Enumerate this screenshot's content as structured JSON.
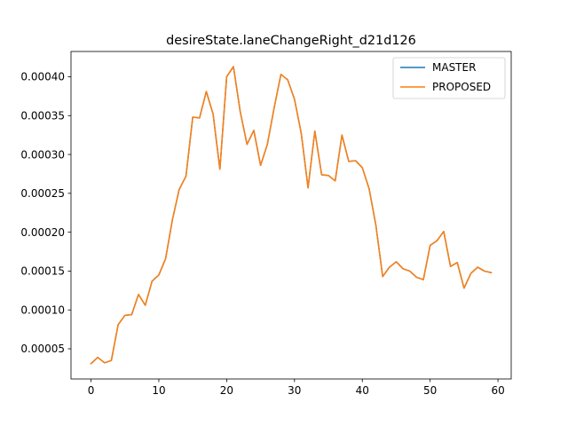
{
  "chart_data": {
    "type": "line",
    "title": "desireState.laneChangeRight_d21d126",
    "xlabel": "",
    "ylabel": "",
    "xlim": [
      -2.95,
      61.95
    ],
    "ylim": [
      1.12e-05,
      0.0004325
    ],
    "x_ticks": [
      0,
      10,
      20,
      30,
      40,
      50,
      60
    ],
    "x_tick_labels": [
      "0",
      "10",
      "20",
      "30",
      "40",
      "50",
      "60"
    ],
    "y_ticks": [
      5e-05,
      0.0001,
      0.00015,
      0.0002,
      0.00025,
      0.0003,
      0.00035,
      0.0004
    ],
    "y_tick_labels": [
      "0.00005",
      "0.00010",
      "0.00015",
      "0.00020",
      "0.00025",
      "0.00030",
      "0.00035",
      "0.00040"
    ],
    "grid": false,
    "legend_position": "upper right",
    "x": [
      0,
      1,
      2,
      3,
      4,
      5,
      6,
      7,
      8,
      9,
      10,
      11,
      12,
      13,
      14,
      15,
      16,
      17,
      18,
      19,
      20,
      21,
      22,
      23,
      24,
      25,
      26,
      27,
      28,
      29,
      30,
      31,
      32,
      33,
      34,
      35,
      36,
      37,
      38,
      39,
      40,
      41,
      42,
      43,
      44,
      45,
      46,
      47,
      48,
      49,
      50,
      51,
      52,
      53,
      54,
      55,
      56,
      57,
      58,
      59
    ],
    "series": [
      {
        "name": "MASTER",
        "color": "#1f77b4",
        "values": [
          3.1e-05,
          3.9e-05,
          3.2e-05,
          3.5e-05,
          8.1e-05,
          9.3e-05,
          9.4e-05,
          0.00012,
          0.000106,
          0.000137,
          0.000145,
          0.000166,
          0.000216,
          0.000255,
          0.000272,
          0.000348,
          0.000347,
          0.000381,
          0.000352,
          0.000281,
          0.0004,
          0.000413,
          0.000355,
          0.000313,
          0.000331,
          0.000286,
          0.000313,
          0.00036,
          0.000403,
          0.000396,
          0.000371,
          0.000327,
          0.000257,
          0.00033,
          0.000274,
          0.000273,
          0.000266,
          0.000325,
          0.000291,
          0.000292,
          0.000283,
          0.000256,
          0.000209,
          0.000143,
          0.000155,
          0.000162,
          0.000153,
          0.00015,
          0.000142,
          0.000139,
          0.000183,
          0.000189,
          0.000201,
          0.000156,
          0.000161,
          0.000128,
          0.000147,
          0.000155,
          0.00015,
          0.000148
        ]
      },
      {
        "name": "PROPOSED",
        "color": "#ff7f0e",
        "values": [
          3.1e-05,
          3.9e-05,
          3.2e-05,
          3.5e-05,
          8.1e-05,
          9.3e-05,
          9.4e-05,
          0.00012,
          0.000106,
          0.000137,
          0.000145,
          0.000166,
          0.000216,
          0.000255,
          0.000272,
          0.000348,
          0.000347,
          0.000381,
          0.000352,
          0.000281,
          0.0004,
          0.000413,
          0.000355,
          0.000313,
          0.000331,
          0.000286,
          0.000313,
          0.00036,
          0.000403,
          0.000396,
          0.000371,
          0.000327,
          0.000257,
          0.00033,
          0.000274,
          0.000273,
          0.000266,
          0.000325,
          0.000291,
          0.000292,
          0.000283,
          0.000256,
          0.000209,
          0.000143,
          0.000155,
          0.000162,
          0.000153,
          0.00015,
          0.000142,
          0.000139,
          0.000183,
          0.000189,
          0.000201,
          0.000156,
          0.000161,
          0.000128,
          0.000147,
          0.000155,
          0.00015,
          0.000148
        ]
      }
    ]
  }
}
